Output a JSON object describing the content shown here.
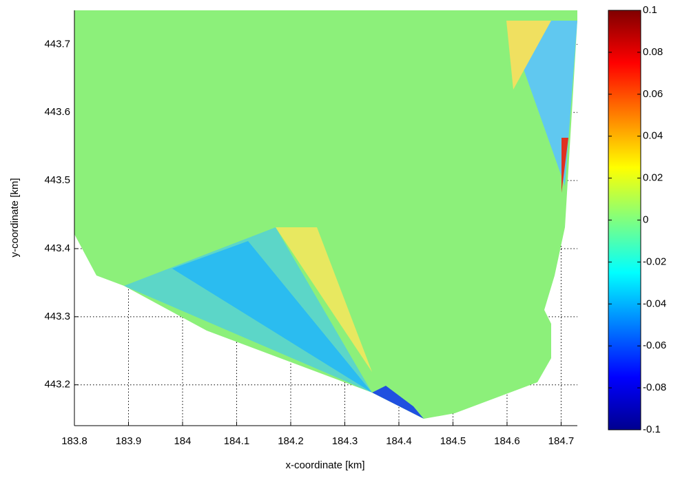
{
  "chart_data": {
    "type": "heatmap",
    "xlabel": "x-coordinate [km]",
    "ylabel": "y-coordinate [km]",
    "xlim": [
      183.8,
      184.73
    ],
    "ylim": [
      443.14,
      443.75
    ],
    "xticks": [
      183.8,
      183.9,
      184,
      184.1,
      184.2,
      184.3,
      184.4,
      184.5,
      184.6,
      184.7
    ],
    "yticks": [
      443.2,
      443.3,
      443.4,
      443.5,
      443.6,
      443.7
    ],
    "grid": true,
    "colorbar": {
      "colormap": "jet",
      "lim": [
        -0.1,
        0.1
      ],
      "ticks": [
        0.1,
        0.08,
        0.06,
        0.04,
        0.02,
        0,
        -0.02,
        -0.04,
        -0.06,
        -0.08,
        -0.1
      ]
    }
  }
}
